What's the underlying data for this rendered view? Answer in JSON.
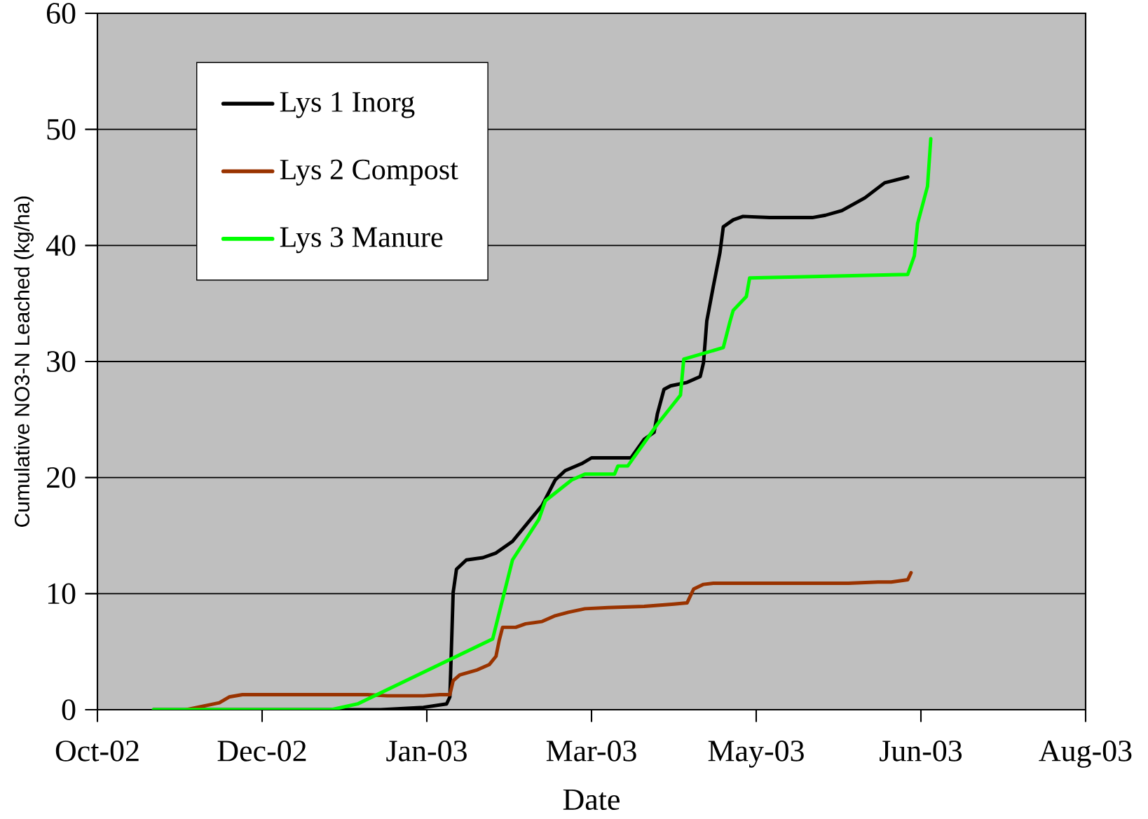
{
  "chart_data": {
    "type": "line",
    "xlabel": "Date",
    "ylabel": "Cumulative NO3-N Leached (kg/ha)",
    "xlim": [
      "2002-10-18",
      "2003-08-14"
    ],
    "xticks": [
      {
        "value": "2002-10-18",
        "label": "Oct-02"
      },
      {
        "value": "2002-12-07",
        "label": "Dec-02"
      },
      {
        "value": "2003-01-26",
        "label": "Jan-03"
      },
      {
        "value": "2003-03-17",
        "label": "Mar-03"
      },
      {
        "value": "2003-05-06",
        "label": "May-03"
      },
      {
        "value": "2003-06-25",
        "label": "Jun-03"
      },
      {
        "value": "2003-08-14",
        "label": "Aug-03"
      }
    ],
    "ylim": [
      0,
      60
    ],
    "yticks": [
      0,
      10,
      20,
      30,
      40,
      50,
      60
    ],
    "grid": "y",
    "legend": "top left",
    "line_style": "solid",
    "marker": "none",
    "series": [
      {
        "name": "Lys 1 Inorg",
        "color": "#000000",
        "x": [
          "2002-11-04",
          "2003-01-12",
          "2003-01-25",
          "2003-02-01",
          "2003-02-02",
          "2003-02-03",
          "2003-02-04",
          "2003-02-07",
          "2003-02-12",
          "2003-02-16",
          "2003-02-21",
          "2003-03-02",
          "2003-03-06",
          "2003-03-09",
          "2003-03-14",
          "2003-03-17",
          "2003-03-29",
          "2003-04-02",
          "2003-04-05",
          "2003-04-06",
          "2003-04-08",
          "2003-04-10",
          "2003-04-15",
          "2003-04-19",
          "2003-04-20",
          "2003-04-21",
          "2003-04-23",
          "2003-04-25",
          "2003-04-26",
          "2003-04-29",
          "2003-05-02",
          "2003-05-10",
          "2003-05-23",
          "2003-05-27",
          "2003-06-01",
          "2003-06-08",
          "2003-06-14",
          "2003-06-21"
        ],
        "values": [
          0,
          0,
          0.2,
          0.5,
          1.1,
          10.1,
          12.1,
          12.9,
          13.1,
          13.5,
          14.5,
          17.6,
          19.8,
          20.6,
          21.2,
          21.7,
          21.7,
          23.3,
          23.9,
          25.5,
          27.6,
          27.9,
          28.2,
          28.7,
          29.9,
          33.5,
          36.5,
          39.4,
          41.6,
          42.2,
          42.5,
          42.4,
          42.4,
          42.6,
          43.0,
          44.1,
          45.4,
          45.9
        ]
      },
      {
        "name": "Lys 2 Compost",
        "color": "#993300",
        "x": [
          "2002-11-14",
          "2002-11-24",
          "2002-11-27",
          "2002-12-01",
          "2003-01-08",
          "2003-01-14",
          "2003-01-25",
          "2003-01-30",
          "2003-02-02",
          "2003-02-03",
          "2003-02-05",
          "2003-02-10",
          "2003-02-14",
          "2003-02-16",
          "2003-02-17",
          "2003-02-18",
          "2003-02-22",
          "2003-02-25",
          "2003-03-02",
          "2003-03-06",
          "2003-03-10",
          "2003-03-15",
          "2003-03-22",
          "2003-04-02",
          "2003-04-11",
          "2003-04-15",
          "2003-04-17",
          "2003-04-20",
          "2003-04-23",
          "2003-06-03",
          "2003-06-12",
          "2003-06-16",
          "2003-06-21",
          "2003-06-22"
        ],
        "values": [
          0,
          0.6,
          1.1,
          1.3,
          1.3,
          1.2,
          1.2,
          1.3,
          1.3,
          2.5,
          3.0,
          3.4,
          3.9,
          4.6,
          6.0,
          7.1,
          7.1,
          7.4,
          7.6,
          8.1,
          8.4,
          8.7,
          8.8,
          8.9,
          9.1,
          9.2,
          10.4,
          10.8,
          10.9,
          10.9,
          11.0,
          11.0,
          11.2,
          11.8
        ]
      },
      {
        "name": "Lys 3 Manure",
        "color": "#00ff00",
        "x": [
          "2002-11-04",
          "2002-12-28",
          "2003-01-05",
          "2003-02-15",
          "2003-02-21",
          "2003-03-01",
          "2003-03-03",
          "2003-03-11",
          "2003-03-15",
          "2003-03-24",
          "2003-03-25",
          "2003-03-28",
          "2003-04-06",
          "2003-04-13",
          "2003-04-14",
          "2003-04-26",
          "2003-04-28",
          "2003-04-29",
          "2003-05-03",
          "2003-05-04",
          "2003-06-21",
          "2003-06-23",
          "2003-06-24",
          "2003-06-27",
          "2003-06-28"
        ],
        "values": [
          0,
          0,
          0.5,
          6.1,
          12.9,
          16.4,
          18.0,
          19.8,
          20.3,
          20.3,
          21.0,
          21.0,
          24.6,
          27.1,
          30.2,
          31.2,
          33.4,
          34.4,
          35.6,
          37.2,
          37.5,
          39.1,
          41.9,
          45.1,
          49.2
        ]
      }
    ]
  }
}
